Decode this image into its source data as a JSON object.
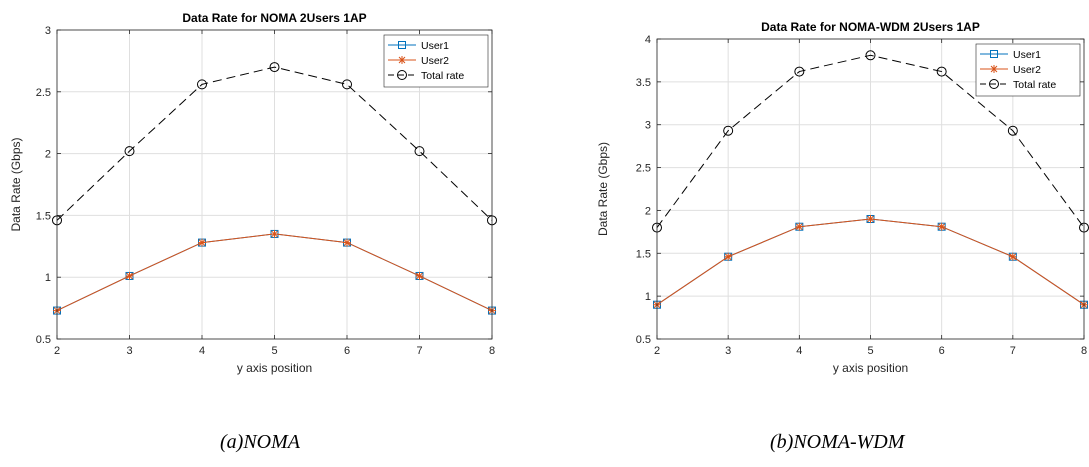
{
  "chart_data": [
    {
      "type": "line",
      "title": "Data Rate for NOMA 2Users 1AP",
      "xlabel": "y axis position",
      "ylabel": "Data Rate (Gbps)",
      "x": [
        2,
        3,
        4,
        5,
        6,
        7,
        8
      ],
      "xlim": [
        2,
        8
      ],
      "ylim": [
        0.5,
        3
      ],
      "xticks": [
        "2",
        "3",
        "4",
        "5",
        "6",
        "7",
        "8"
      ],
      "yticks": [
        "0.5",
        "1",
        "1.5",
        "2",
        "2.5",
        "3"
      ],
      "grid": true,
      "legend_position": "top-right",
      "series": [
        {
          "name": "User1",
          "values": [
            0.73,
            1.01,
            1.28,
            1.35,
            1.28,
            1.01,
            0.73
          ],
          "color": "#0072bd",
          "marker": "square",
          "dash": "solid"
        },
        {
          "name": "User2",
          "values": [
            0.73,
            1.01,
            1.28,
            1.35,
            1.28,
            1.01,
            0.73
          ],
          "color": "#d95319",
          "marker": "star",
          "dash": "solid"
        },
        {
          "name": "Total rate",
          "values": [
            1.46,
            2.02,
            2.56,
            2.7,
            2.56,
            2.02,
            1.46
          ],
          "color": "#000000",
          "marker": "circle",
          "dash": "dashed"
        }
      ]
    },
    {
      "type": "line",
      "title": "Data Rate for NOMA-WDM 2Users 1AP",
      "xlabel": "y axis position",
      "ylabel": "Data Rate (Gbps)",
      "x": [
        2,
        3,
        4,
        5,
        6,
        7,
        8
      ],
      "xlim": [
        2,
        8
      ],
      "ylim": [
        0.5,
        4
      ],
      "xticks": [
        "2",
        "3",
        "4",
        "5",
        "6",
        "7",
        "8"
      ],
      "yticks": [
        "0.5",
        "1",
        "1.5",
        "2",
        "2.5",
        "3",
        "3.5",
        "4"
      ],
      "grid": true,
      "legend_position": "top-right",
      "series": [
        {
          "name": "User1",
          "values": [
            0.9,
            1.46,
            1.81,
            1.9,
            1.81,
            1.46,
            0.9
          ],
          "color": "#0072bd",
          "marker": "square",
          "dash": "solid"
        },
        {
          "name": "User2",
          "values": [
            0.9,
            1.46,
            1.81,
            1.9,
            1.81,
            1.46,
            0.9
          ],
          "color": "#d95319",
          "marker": "star",
          "dash": "solid"
        },
        {
          "name": "Total rate",
          "values": [
            1.8,
            2.93,
            3.62,
            3.81,
            3.62,
            2.93,
            1.8
          ],
          "color": "#000000",
          "marker": "circle",
          "dash": "dashed"
        }
      ]
    }
  ],
  "captions": {
    "a": "(a)NOMA",
    "b": "(b)NOMA-WDM"
  }
}
